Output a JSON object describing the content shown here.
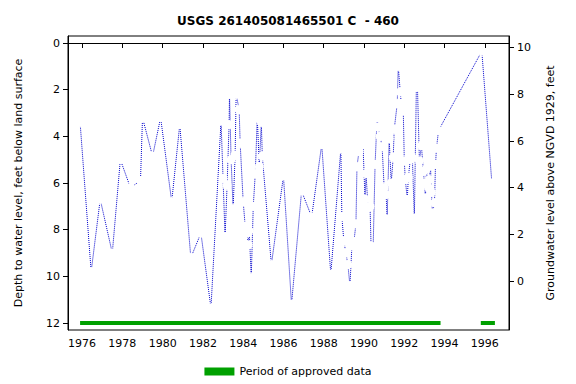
{
  "chart_data": {
    "type": "line",
    "title": "USGS 261405081465501 C  - 460",
    "y_label": "Depth to water level, feet below land surface",
    "y2_label": "Groundwater level above NGVD 1929, feet",
    "xlim": [
      1975.3,
      1997.2
    ],
    "xticks": [
      1976,
      1978,
      1980,
      1982,
      1984,
      1986,
      1988,
      1990,
      1992,
      1994,
      1996
    ],
    "ylim": [
      12.3,
      -0.3
    ],
    "yticks": [
      0,
      2,
      4,
      6,
      8,
      10,
      12
    ],
    "y2lim": [
      -2.1,
      10.5
    ],
    "y2ticks": [
      0,
      2,
      4,
      6,
      8,
      10
    ],
    "grid": false,
    "legend": "bottom",
    "series": [
      {
        "color": "#0000cc",
        "marker": "circle",
        "line_style": "dotted",
        "x": [
          1975.9,
          1976.45,
          1976.9,
          1977.5,
          1977.9,
          1978.4,
          1978.9,
          1979.0,
          1979.5,
          1979.9,
          1980.45,
          1980.85,
          1981.4,
          1981.9,
          1982.4,
          1982.9,
          1983.0,
          1983.1,
          1983.2,
          1983.3,
          1983.32,
          1983.4,
          1983.5,
          1983.6,
          1983.65,
          1983.8,
          1983.85,
          1984.0,
          1984.1,
          1984.2,
          1984.25,
          1984.3,
          1984.4,
          1984.5,
          1984.6,
          1984.7,
          1984.8,
          1984.9,
          1984.95,
          1985.4,
          1986.0,
          1986.4,
          1986.9,
          1987.4,
          1987.9,
          1988.35,
          1988.85,
          1988.9,
          1989.0,
          1989.1,
          1989.2,
          1989.3,
          1989.4,
          1989.5,
          1989.6,
          1989.65,
          1989.75,
          1989.85,
          1989.95,
          1990.05,
          1990.1,
          1990.2,
          1990.3,
          1990.35,
          1990.45,
          1990.55,
          1990.65,
          1990.7,
          1990.8,
          1990.9,
          1991.0,
          1991.1,
          1991.15,
          1991.25,
          1991.35,
          1991.45,
          1991.5,
          1991.65,
          1991.7,
          1991.8,
          1991.85,
          1991.95,
          1992.0,
          1992.05,
          1992.15,
          1992.2,
          1992.3,
          1992.4,
          1992.5,
          1992.6,
          1992.65,
          1992.75,
          1992.85,
          1992.95,
          1993.0,
          1993.05,
          1993.1,
          1993.2,
          1993.25,
          1993.3,
          1993.35,
          1993.4,
          1993.5,
          1993.55,
          1993.6,
          1993.7,
          1995.85,
          1996.35
        ],
        "values": [
          3.4,
          9.8,
          6.7,
          9.0,
          5.0,
          6.2,
          5.9,
          3.2,
          4.85,
          3.2,
          6.8,
          3.5,
          9.2,
          8.15,
          11.35,
          3.35,
          5.8,
          8.3,
          6.1,
          3.5,
          2.2,
          5.0,
          7.1,
          4.8,
          2.2,
          2.85,
          4.3,
          6.8,
          7.85,
          8.15,
          8.65,
          8.05,
          10.05,
          7.0,
          5.6,
          3.2,
          5.3,
          3.4,
          4.85,
          9.5,
          5.7,
          11.2,
          6.35,
          7.45,
          4.35,
          9.9,
          4.55,
          7.45,
          8.5,
          9.0,
          9.5,
          10.4,
          8.7,
          8.5,
          7.75,
          5.3,
          4.65,
          4.35,
          4.35,
          6.7,
          5.6,
          7.05,
          7.0,
          8.7,
          8.9,
          5.2,
          3.2,
          3.6,
          4.0,
          4.45,
          6.2,
          6.5,
          7.55,
          4.1,
          6.0,
          4.9,
          3.7,
          2.6,
          1.0,
          2.1,
          2.6,
          2.9,
          5.05,
          5.85,
          6.7,
          5.75,
          5.0,
          4.9,
          7.5,
          1.9,
          1.75,
          5.05,
          4.4,
          5.5,
          6.0,
          6.65,
          5.4,
          6.2,
          5.85,
          5.25,
          6.4,
          7.3,
          6.85,
          5.2,
          4.5,
          3.75,
          0.35,
          6.0
        ]
      },
      {
        "name": "Period of approved data",
        "color": "#00a000",
        "line_style": "solid",
        "x": [
          1975.9,
          1993.8,
          1993.8,
          1995.8,
          1996.5
        ],
        "values": [
          12,
          12,
          null,
          12,
          12
        ]
      }
    ]
  }
}
